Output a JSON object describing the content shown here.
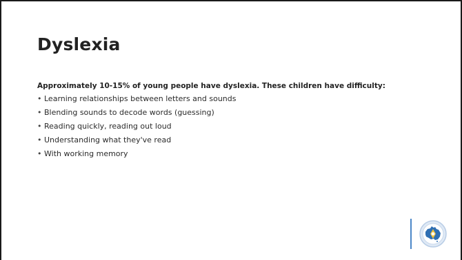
{
  "slide": {
    "title": "Dyslexia",
    "intro": "Approximately 10-15% of young people have dyslexia. These children have difficulty:",
    "bullets": [
      "Learning relationships between letters and sounds",
      "Blending sounds to decode words (guessing)",
      "Reading quickly, reading out loud",
      "Understanding what they've read",
      "With working memory"
    ],
    "bullet_glyph": "•"
  },
  "logo": {
    "icon": "australia-map-emblem-icon"
  },
  "colors": {
    "text": "#222222",
    "accent_blue": "#4a86c8",
    "logo_ring": "#b9cde6"
  }
}
